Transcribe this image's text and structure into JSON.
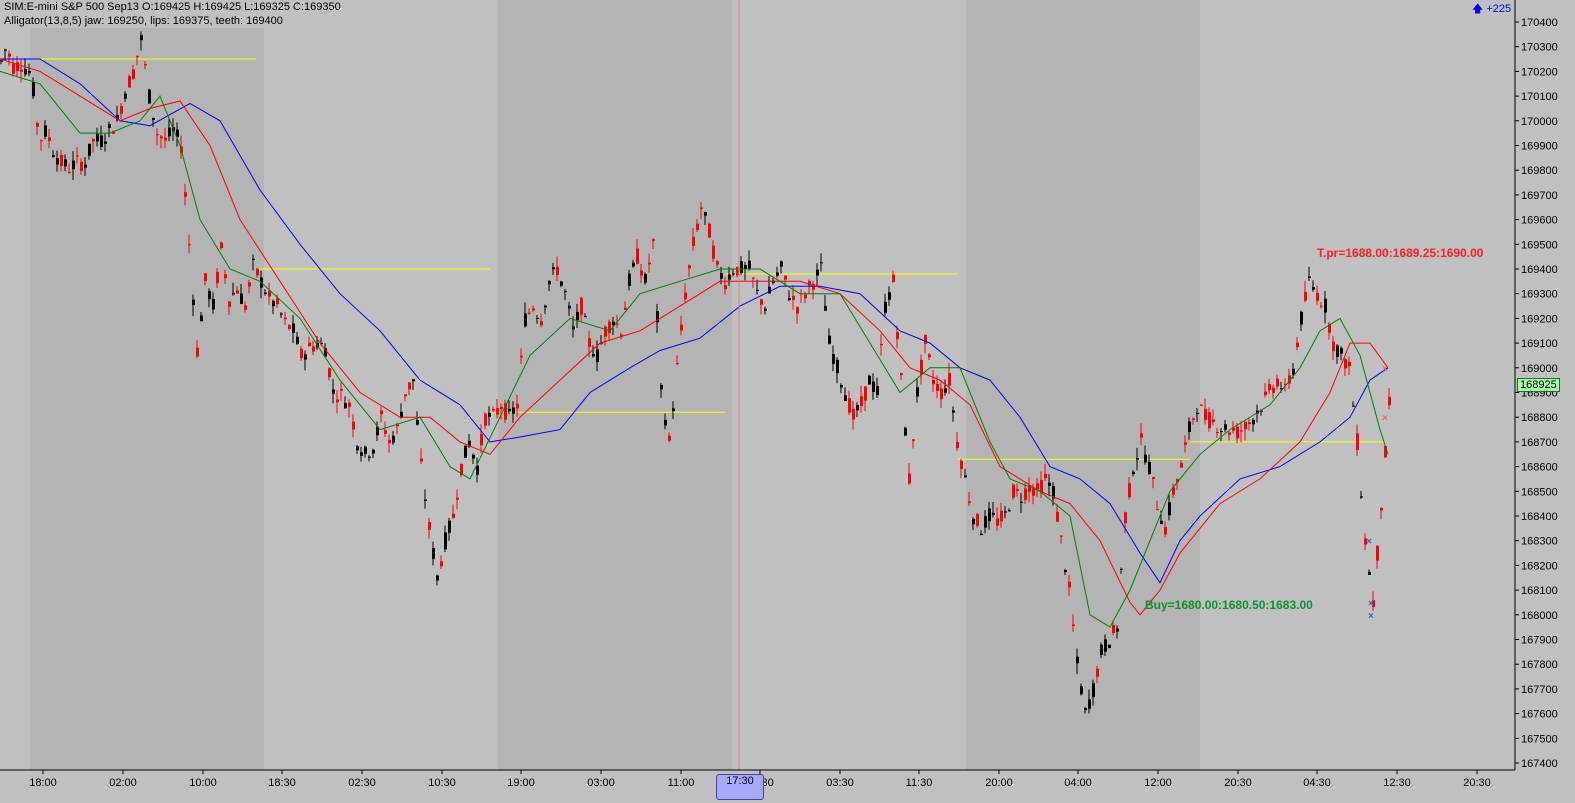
{
  "header": {
    "instrument_line": "SIM:E-mini S&P 500 Sep13 O:169425 H:169425 L:169325 C:169350",
    "indicator_line": "Alligator(13,8,5) jaw: 169250, lips: 169375, teeth: 169400"
  },
  "top_right_badge": "+225",
  "current_price_tag": "168925",
  "annotations": {
    "take_profit": "T.pr=1688.00:1689.25:1690.00",
    "buy": "Buy=1680.00:1680.50:1683.00"
  },
  "time_cursor_label": "17:30",
  "colors": {
    "background": "#c0c0c0",
    "session_shade": "#b4b4b4",
    "up_candle": "#000000",
    "down_candle": "#ff0000",
    "jaw": "#0000ff",
    "teeth": "#ff0000",
    "lips": "#008000",
    "level_line": "#ffff00"
  },
  "chart_data": {
    "type": "candlestick",
    "title": "",
    "xlabel": "",
    "ylabel": "",
    "ylim": [
      167400,
      170500
    ],
    "x_tick_labels": [
      "18:00",
      "02:00",
      "10:00",
      "18:30",
      "02:30",
      "10:30",
      "19:00",
      "03:00",
      "11:00",
      "17:30",
      "03:30",
      "11:30",
      "20:00",
      "04:00",
      "12:00",
      "20:30",
      "04:30",
      "12:30",
      "20:30"
    ],
    "y_tick_labels": [
      "170400",
      "170300",
      "170200",
      "170100",
      "170000",
      "169900",
      "169800",
      "169700",
      "169600",
      "169500",
      "169400",
      "169300",
      "169200",
      "169100",
      "169000",
      "168900",
      "168800",
      "168700",
      "168600",
      "168500",
      "168400",
      "168300",
      "168200",
      "168100",
      "168000",
      "167900",
      "167800",
      "167700",
      "167600",
      "167500",
      "167400"
    ],
    "close_path": [
      [
        0,
        170240
      ],
      [
        5,
        170300
      ],
      [
        12,
        170220
      ],
      [
        20,
        170230
      ],
      [
        30,
        170190
      ],
      [
        38,
        169920
      ],
      [
        45,
        169960
      ],
      [
        52,
        169880
      ],
      [
        60,
        169830
      ],
      [
        68,
        169810
      ],
      [
        76,
        169830
      ],
      [
        84,
        169830
      ],
      [
        92,
        169920
      ],
      [
        100,
        169920
      ],
      [
        108,
        169960
      ],
      [
        116,
        170000
      ],
      [
        124,
        170120
      ],
      [
        132,
        170200
      ],
      [
        140,
        170330
      ],
      [
        148,
        170100
      ],
      [
        156,
        169950
      ],
      [
        164,
        169920
      ],
      [
        172,
        169960
      ],
      [
        180,
        169900
      ],
      [
        188,
        169500
      ],
      [
        196,
        169070
      ],
      [
        204,
        169350
      ],
      [
        212,
        169250
      ],
      [
        220,
        169480
      ],
      [
        228,
        169280
      ],
      [
        236,
        169320
      ],
      [
        244,
        169250
      ],
      [
        252,
        169410
      ],
      [
        260,
        169350
      ],
      [
        268,
        169280
      ],
      [
        276,
        169250
      ],
      [
        284,
        169180
      ],
      [
        292,
        169150
      ],
      [
        300,
        169050
      ],
      [
        308,
        169080
      ],
      [
        316,
        169100
      ],
      [
        324,
        169080
      ],
      [
        332,
        168900
      ],
      [
        340,
        168890
      ],
      [
        348,
        168850
      ],
      [
        356,
        168700
      ],
      [
        364,
        168650
      ],
      [
        372,
        168680
      ],
      [
        380,
        168800
      ],
      [
        388,
        168700
      ],
      [
        396,
        168750
      ],
      [
        404,
        168900
      ],
      [
        412,
        168950
      ],
      [
        420,
        168600
      ],
      [
        428,
        168350
      ],
      [
        436,
        168150
      ],
      [
        444,
        168300
      ],
      [
        452,
        168400
      ],
      [
        460,
        168600
      ],
      [
        468,
        168700
      ],
      [
        476,
        168600
      ],
      [
        484,
        168800
      ],
      [
        492,
        168800
      ],
      [
        500,
        168850
      ],
      [
        508,
        168800
      ],
      [
        516,
        168850
      ],
      [
        524,
        169200
      ],
      [
        532,
        169250
      ],
      [
        540,
        169200
      ],
      [
        548,
        169350
      ],
      [
        556,
        169400
      ],
      [
        564,
        169300
      ],
      [
        572,
        169150
      ],
      [
        580,
        169250
      ],
      [
        588,
        169100
      ],
      [
        596,
        169050
      ],
      [
        604,
        169150
      ],
      [
        612,
        169200
      ],
      [
        620,
        169150
      ],
      [
        628,
        169350
      ],
      [
        636,
        169450
      ],
      [
        644,
        169350
      ],
      [
        652,
        169500
      ],
      [
        660,
        168900
      ],
      [
        668,
        168700
      ],
      [
        676,
        169000
      ],
      [
        684,
        169300
      ],
      [
        692,
        169500
      ],
      [
        700,
        169650
      ],
      [
        708,
        169550
      ],
      [
        716,
        169400
      ],
      [
        724,
        169350
      ],
      [
        732,
        169400
      ],
      [
        740,
        169400
      ],
      [
        748,
        169400
      ],
      [
        756,
        169300
      ],
      [
        764,
        169250
      ],
      [
        772,
        169350
      ],
      [
        780,
        169400
      ],
      [
        788,
        169300
      ],
      [
        796,
        169250
      ],
      [
        804,
        169300
      ],
      [
        812,
        169350
      ],
      [
        820,
        169400
      ],
      [
        828,
        169100
      ],
      [
        836,
        169000
      ],
      [
        844,
        168900
      ],
      [
        852,
        168800
      ],
      [
        860,
        168850
      ],
      [
        868,
        168950
      ],
      [
        876,
        168900
      ],
      [
        884,
        169250
      ],
      [
        892,
        169350
      ],
      [
        900,
        168950
      ],
      [
        908,
        168550
      ],
      [
        916,
        168900
      ],
      [
        924,
        169100
      ],
      [
        932,
        168950
      ],
      [
        940,
        168900
      ],
      [
        948,
        168950
      ],
      [
        956,
        168700
      ],
      [
        964,
        168550
      ],
      [
        972,
        168400
      ],
      [
        980,
        168350
      ],
      [
        988,
        168400
      ],
      [
        996,
        168380
      ],
      [
        1004,
        168400
      ],
      [
        1012,
        168500
      ],
      [
        1020,
        168480
      ],
      [
        1028,
        168520
      ],
      [
        1036,
        168500
      ],
      [
        1044,
        168550
      ],
      [
        1052,
        168500
      ],
      [
        1060,
        168300
      ],
      [
        1068,
        168100
      ],
      [
        1076,
        167800
      ],
      [
        1084,
        167600
      ],
      [
        1092,
        167700
      ],
      [
        1100,
        167850
      ],
      [
        1108,
        167900
      ],
      [
        1116,
        167950
      ],
      [
        1124,
        168400
      ],
      [
        1132,
        168600
      ],
      [
        1140,
        168700
      ],
      [
        1148,
        168600
      ],
      [
        1156,
        168450
      ],
      [
        1164,
        168350
      ],
      [
        1172,
        168500
      ],
      [
        1180,
        168600
      ],
      [
        1188,
        168750
      ],
      [
        1196,
        168850
      ],
      [
        1204,
        168800
      ],
      [
        1212,
        168780
      ],
      [
        1220,
        168760
      ],
      [
        1228,
        168750
      ],
      [
        1236,
        168740
      ],
      [
        1244,
        168760
      ],
      [
        1252,
        168800
      ],
      [
        1260,
        168850
      ],
      [
        1268,
        168900
      ],
      [
        1276,
        168950
      ],
      [
        1284,
        168900
      ],
      [
        1292,
        169000
      ],
      [
        1300,
        169200
      ],
      [
        1308,
        169350
      ],
      [
        1316,
        169300
      ],
      [
        1324,
        169250
      ],
      [
        1332,
        169100
      ],
      [
        1340,
        169050
      ],
      [
        1348,
        169000
      ],
      [
        1356,
        168700
      ],
      [
        1364,
        168300
      ],
      [
        1372,
        168050
      ],
      [
        1380,
        168450
      ],
      [
        1388,
        168850
      ]
    ],
    "series": [
      {
        "name": "jaw",
        "points": [
          [
            0,
            170250
          ],
          [
            40,
            170250
          ],
          [
            80,
            170150
          ],
          [
            120,
            170000
          ],
          [
            150,
            169980
          ],
          [
            190,
            170070
          ],
          [
            220,
            170000
          ],
          [
            260,
            169720
          ],
          [
            300,
            169500
          ],
          [
            340,
            169300
          ],
          [
            380,
            169150
          ],
          [
            420,
            168950
          ],
          [
            460,
            168850
          ],
          [
            490,
            168700
          ],
          [
            520,
            168720
          ],
          [
            560,
            168750
          ],
          [
            590,
            168900
          ],
          [
            630,
            169000
          ],
          [
            660,
            169070
          ],
          [
            700,
            169120
          ],
          [
            740,
            169250
          ],
          [
            780,
            169330
          ],
          [
            820,
            169330
          ],
          [
            860,
            169300
          ],
          [
            900,
            169150
          ],
          [
            930,
            169100
          ],
          [
            960,
            169000
          ],
          [
            990,
            168950
          ],
          [
            1020,
            168800
          ],
          [
            1050,
            168600
          ],
          [
            1080,
            168550
          ],
          [
            1110,
            168450
          ],
          [
            1140,
            168250
          ],
          [
            1160,
            168130
          ],
          [
            1180,
            168300
          ],
          [
            1200,
            168400
          ],
          [
            1240,
            168550
          ],
          [
            1280,
            168600
          ],
          [
            1320,
            168700
          ],
          [
            1350,
            168800
          ],
          [
            1370,
            168950
          ],
          [
            1388,
            169000
          ]
        ]
      },
      {
        "name": "teeth",
        "points": [
          [
            0,
            170250
          ],
          [
            40,
            170200
          ],
          [
            80,
            170100
          ],
          [
            120,
            170000
          ],
          [
            150,
            170050
          ],
          [
            180,
            170080
          ],
          [
            210,
            169900
          ],
          [
            240,
            169600
          ],
          [
            280,
            169350
          ],
          [
            320,
            169100
          ],
          [
            360,
            168900
          ],
          [
            400,
            168800
          ],
          [
            430,
            168800
          ],
          [
            460,
            168700
          ],
          [
            490,
            168650
          ],
          [
            520,
            168800
          ],
          [
            560,
            168950
          ],
          [
            600,
            169100
          ],
          [
            640,
            169150
          ],
          [
            680,
            169250
          ],
          [
            720,
            169350
          ],
          [
            760,
            169350
          ],
          [
            800,
            169350
          ],
          [
            840,
            169300
          ],
          [
            880,
            169150
          ],
          [
            910,
            169000
          ],
          [
            940,
            168950
          ],
          [
            970,
            168850
          ],
          [
            1000,
            168600
          ],
          [
            1040,
            168500
          ],
          [
            1070,
            168450
          ],
          [
            1100,
            168300
          ],
          [
            1130,
            168050
          ],
          [
            1140,
            168000
          ],
          [
            1160,
            168100
          ],
          [
            1180,
            168250
          ],
          [
            1220,
            168450
          ],
          [
            1260,
            168550
          ],
          [
            1300,
            168700
          ],
          [
            1330,
            168900
          ],
          [
            1350,
            169100
          ],
          [
            1370,
            169100
          ],
          [
            1388,
            169000
          ]
        ]
      },
      {
        "name": "lips",
        "points": [
          [
            0,
            170200
          ],
          [
            40,
            170150
          ],
          [
            80,
            169950
          ],
          [
            110,
            169950
          ],
          [
            140,
            170000
          ],
          [
            160,
            170100
          ],
          [
            180,
            169900
          ],
          [
            200,
            169600
          ],
          [
            230,
            169400
          ],
          [
            260,
            169350
          ],
          [
            300,
            169200
          ],
          [
            340,
            168950
          ],
          [
            380,
            168750
          ],
          [
            420,
            168800
          ],
          [
            450,
            168600
          ],
          [
            470,
            168550
          ],
          [
            500,
            168800
          ],
          [
            530,
            169050
          ],
          [
            570,
            169200
          ],
          [
            610,
            169150
          ],
          [
            640,
            169300
          ],
          [
            680,
            169350
          ],
          [
            720,
            169400
          ],
          [
            760,
            169400
          ],
          [
            800,
            169300
          ],
          [
            840,
            169300
          ],
          [
            870,
            169100
          ],
          [
            900,
            168900
          ],
          [
            930,
            169000
          ],
          [
            960,
            169000
          ],
          [
            990,
            168700
          ],
          [
            1010,
            168550
          ],
          [
            1040,
            168500
          ],
          [
            1070,
            168400
          ],
          [
            1090,
            168000
          ],
          [
            1110,
            167950
          ],
          [
            1130,
            168100
          ],
          [
            1150,
            168300
          ],
          [
            1170,
            168500
          ],
          [
            1200,
            168650
          ],
          [
            1230,
            168750
          ],
          [
            1270,
            168850
          ],
          [
            1300,
            169000
          ],
          [
            1320,
            169150
          ],
          [
            1340,
            169200
          ],
          [
            1360,
            169050
          ],
          [
            1380,
            168750
          ],
          [
            1388,
            168650
          ]
        ]
      }
    ],
    "horizontal_levels": [
      {
        "price": 170250,
        "x_start": 0,
        "x_end": 256
      },
      {
        "price": 169400,
        "x_start": 256,
        "x_end": 490
      },
      {
        "price": 168820,
        "x_start": 490,
        "x_end": 725
      },
      {
        "price": 169380,
        "x_start": 725,
        "x_end": 958
      },
      {
        "price": 168630,
        "x_start": 958,
        "x_end": 1190
      },
      {
        "price": 168700,
        "x_start": 1190,
        "x_end": 1385
      }
    ],
    "trade_markers": [
      {
        "price": 168300,
        "bar_x": 1369,
        "color": "#1f6fd0"
      },
      {
        "price": 168050,
        "bar_x": 1371,
        "color": "#1f6fd0"
      },
      {
        "price": 168000,
        "bar_x": 1371,
        "color": "#1f6fd0"
      },
      {
        "price": 168800,
        "bar_x": 1385,
        "color": "#ff6060"
      },
      {
        "price": 169000,
        "bar_x": 1385,
        "color": "#ff6060"
      }
    ],
    "grid": false,
    "legend": "none"
  }
}
